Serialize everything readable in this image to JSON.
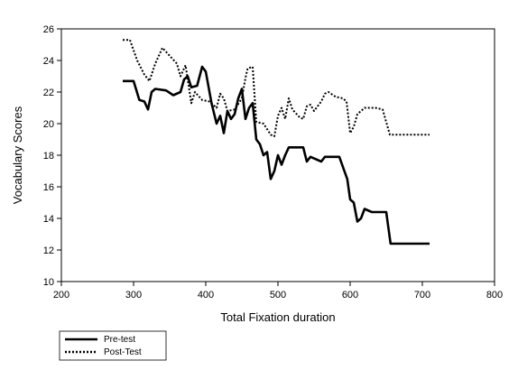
{
  "chart_data": {
    "type": "line",
    "title": "",
    "xlabel": "Total Fixation duration",
    "ylabel": "Vocabulary Scores",
    "xlim": [
      200,
      800
    ],
    "ylim": [
      10,
      26
    ],
    "xticks": [
      200,
      300,
      400,
      500,
      600,
      700,
      800
    ],
    "yticks": [
      10,
      12,
      14,
      16,
      18,
      20,
      22,
      24,
      26
    ],
    "grid": false,
    "legend_position": "bottom-left",
    "series": [
      {
        "name": "Pre-test",
        "style": "solid",
        "color": "#000000",
        "points": [
          [
            285,
            22.7
          ],
          [
            300,
            22.7
          ],
          [
            308,
            21.5
          ],
          [
            315,
            21.4
          ],
          [
            320,
            20.9
          ],
          [
            325,
            22.0
          ],
          [
            330,
            22.2
          ],
          [
            345,
            22.1
          ],
          [
            355,
            21.8
          ],
          [
            365,
            22.0
          ],
          [
            370,
            22.8
          ],
          [
            375,
            23.0
          ],
          [
            380,
            22.3
          ],
          [
            388,
            22.4
          ],
          [
            395,
            23.6
          ],
          [
            400,
            23.3
          ],
          [
            408,
            21.3
          ],
          [
            415,
            20.0
          ],
          [
            420,
            20.5
          ],
          [
            425,
            19.4
          ],
          [
            430,
            20.8
          ],
          [
            435,
            20.3
          ],
          [
            440,
            20.6
          ],
          [
            445,
            21.6
          ],
          [
            450,
            22.2
          ],
          [
            455,
            20.3
          ],
          [
            460,
            21.0
          ],
          [
            465,
            21.3
          ],
          [
            470,
            19.0
          ],
          [
            475,
            18.7
          ],
          [
            480,
            18.0
          ],
          [
            485,
            18.2
          ],
          [
            490,
            16.5
          ],
          [
            495,
            17.0
          ],
          [
            500,
            18.0
          ],
          [
            505,
            17.4
          ],
          [
            510,
            18.0
          ],
          [
            515,
            18.5
          ],
          [
            535,
            18.5
          ],
          [
            540,
            17.6
          ],
          [
            545,
            17.9
          ],
          [
            560,
            17.6
          ],
          [
            565,
            17.9
          ],
          [
            585,
            17.9
          ],
          [
            592,
            17.0
          ],
          [
            596,
            16.5
          ],
          [
            600,
            15.2
          ],
          [
            605,
            15.0
          ],
          [
            610,
            13.8
          ],
          [
            615,
            14.0
          ],
          [
            620,
            14.6
          ],
          [
            630,
            14.4
          ],
          [
            650,
            14.4
          ],
          [
            656,
            12.4
          ],
          [
            710,
            12.4
          ]
        ]
      },
      {
        "name": "Post-Test",
        "style": "dotted",
        "color": "#000000",
        "points": [
          [
            285,
            25.3
          ],
          [
            295,
            25.3
          ],
          [
            305,
            24.0
          ],
          [
            315,
            23.1
          ],
          [
            322,
            22.7
          ],
          [
            330,
            23.8
          ],
          [
            340,
            24.8
          ],
          [
            350,
            24.3
          ],
          [
            360,
            23.8
          ],
          [
            365,
            23.0
          ],
          [
            372,
            23.7
          ],
          [
            380,
            21.3
          ],
          [
            385,
            22.0
          ],
          [
            395,
            21.5
          ],
          [
            405,
            21.4
          ],
          [
            415,
            21.0
          ],
          [
            420,
            21.9
          ],
          [
            425,
            21.6
          ],
          [
            430,
            20.8
          ],
          [
            440,
            20.9
          ],
          [
            450,
            21.6
          ],
          [
            455,
            22.9
          ],
          [
            458,
            23.5
          ],
          [
            465,
            23.6
          ],
          [
            470,
            20.1
          ],
          [
            480,
            20.0
          ],
          [
            490,
            19.3
          ],
          [
            495,
            19.2
          ],
          [
            500,
            20.5
          ],
          [
            505,
            21.0
          ],
          [
            510,
            20.3
          ],
          [
            515,
            21.6
          ],
          [
            520,
            20.9
          ],
          [
            530,
            20.4
          ],
          [
            535,
            20.3
          ],
          [
            540,
            21.1
          ],
          [
            545,
            21.2
          ],
          [
            550,
            20.8
          ],
          [
            555,
            21.1
          ],
          [
            560,
            21.4
          ],
          [
            565,
            21.9
          ],
          [
            570,
            22.0
          ],
          [
            580,
            21.7
          ],
          [
            590,
            21.6
          ],
          [
            595,
            21.4
          ],
          [
            600,
            19.4
          ],
          [
            605,
            19.8
          ],
          [
            610,
            20.6
          ],
          [
            615,
            20.8
          ],
          [
            620,
            21.0
          ],
          [
            635,
            21.0
          ],
          [
            645,
            20.9
          ],
          [
            650,
            20.1
          ],
          [
            655,
            19.3
          ],
          [
            710,
            19.3
          ]
        ]
      }
    ]
  }
}
